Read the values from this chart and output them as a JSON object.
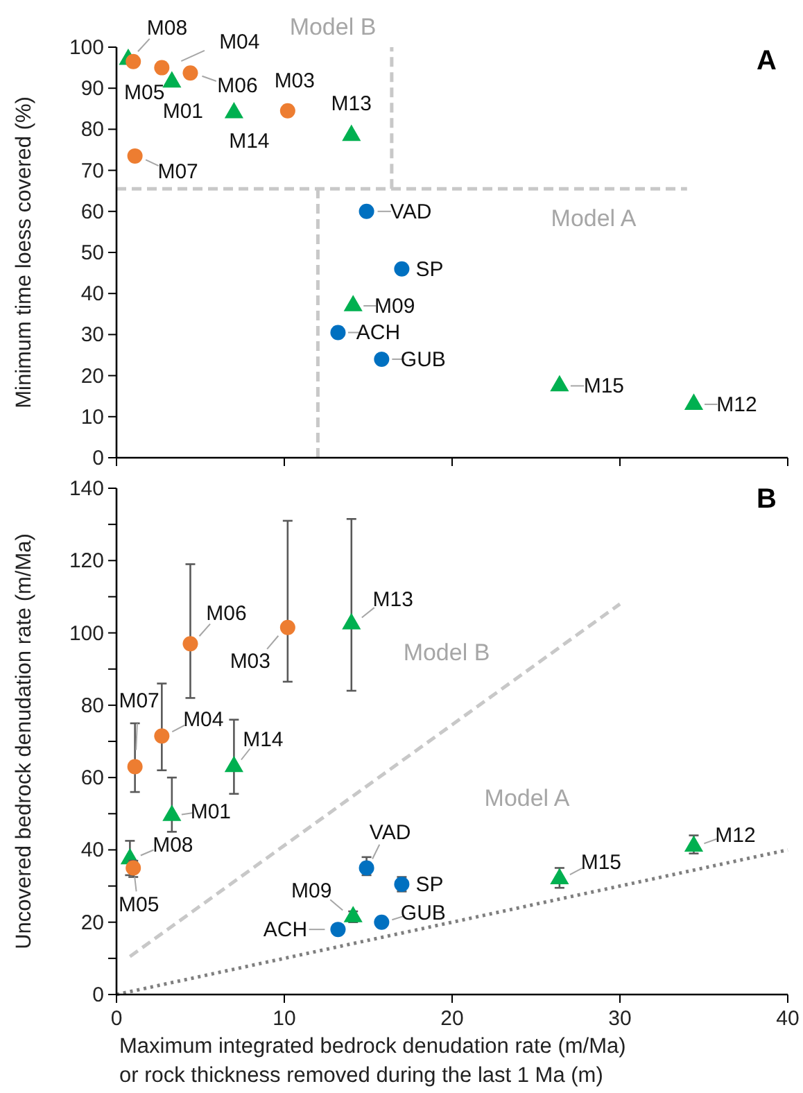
{
  "chart_data": [
    {
      "type": "scatter",
      "ylabel": "Minimum time loess covered (%)",
      "xlim": [
        0,
        40
      ],
      "xticks": [
        0,
        10,
        20,
        30,
        40
      ],
      "ylim": [
        0,
        100
      ],
      "yticks": [
        0,
        10,
        20,
        30,
        40,
        50,
        60,
        70,
        80,
        90,
        100
      ],
      "tick_labels": "y",
      "grid": false,
      "series": [
        {
          "type": "line",
          "color": "#c8c8c8",
          "line_style": "dashed",
          "x": [
            12,
            12
          ],
          "values": [
            0,
            65.5
          ]
        },
        {
          "type": "line",
          "color": "#c8c8c8",
          "line_style": "dashed",
          "x": [
            0,
            34
          ],
          "values": [
            65.5,
            65.5
          ]
        },
        {
          "type": "line",
          "color": "#c8c8c8",
          "line_style": "dashed",
          "x": [
            16.4,
            16.4
          ],
          "values": [
            65.5,
            100
          ]
        },
        {
          "color": "#00b050",
          "marker": "triangle",
          "x": [
            0.7,
            3.3,
            7.0,
            14.0,
            14.1,
            26.4,
            34.4
          ],
          "values": [
            97,
            91.5,
            84,
            78.5,
            37,
            17.5,
            13
          ]
        },
        {
          "color": "#ed7d31",
          "marker": "circle",
          "x": [
            1.0,
            2.7,
            4.4,
            1.1,
            10.2
          ],
          "values": [
            96.5,
            95,
            93.7,
            73.5,
            84.5
          ]
        },
        {
          "color": "#0070c0",
          "marker": "circle",
          "x": [
            14.9,
            17.0,
            13.2,
            15.8
          ],
          "values": [
            60,
            46,
            30.5,
            24
          ]
        }
      ],
      "annotations": [
        {
          "text": "M08",
          "x": 0.7,
          "y": 97
        },
        {
          "text": "M04",
          "x": 2.7,
          "y": 95
        },
        {
          "text": "M05",
          "x": 1.0,
          "y": 96.5
        },
        {
          "text": "M01",
          "x": 3.3,
          "y": 91.5
        },
        {
          "text": "M06",
          "x": 4.4,
          "y": 93.7
        },
        {
          "text": "M07",
          "x": 1.1,
          "y": 73.5
        },
        {
          "text": "M14",
          "x": 7.0,
          "y": 84
        },
        {
          "text": "M03",
          "x": 10.2,
          "y": 84.5
        },
        {
          "text": "M13",
          "x": 14.0,
          "y": 78.5
        },
        {
          "text": "VAD",
          "x": 14.9,
          "y": 60
        },
        {
          "text": "SP",
          "x": 17.0,
          "y": 46
        },
        {
          "text": "M09",
          "x": 14.1,
          "y": 37
        },
        {
          "text": "ACH",
          "x": 13.2,
          "y": 30.5
        },
        {
          "text": "GUB",
          "x": 15.8,
          "y": 24
        },
        {
          "text": "M15",
          "x": 26.4,
          "y": 17.5
        },
        {
          "text": "M12",
          "x": 34.4,
          "y": 13
        },
        "Model B",
        "Model A",
        "A"
      ]
    },
    {
      "type": "scatter",
      "ylabel": "Uncovered bedrock denudation rate (m/Ma)",
      "xlabel": "Maximum integrated bedrock denudation rate (m/Ma)\nor rock thickness removed during the last 1 Ma (m)",
      "xlim": [
        0,
        40
      ],
      "xticks": [
        0,
        10,
        20,
        30,
        40
      ],
      "ylim": [
        0,
        140
      ],
      "yticks": [
        0,
        {
          "value": 10,
          "label": null
        },
        20,
        {
          "value": 30,
          "label": null
        },
        40,
        {
          "value": 50,
          "label": null
        },
        60,
        {
          "value": 70,
          "label": null
        },
        80,
        {
          "value": 90,
          "label": null
        },
        100,
        {
          "value": 110,
          "label": null
        },
        120,
        {
          "value": 130,
          "label": null
        },
        140
      ],
      "grid": false,
      "series": [
        {
          "type": "line",
          "color": "#c8c8c8",
          "line_style": "dashed",
          "x": [
            0.8,
            30
          ],
          "values": [
            10.5,
            108
          ]
        },
        {
          "type": "line",
          "color": "#7f7f7f",
          "line_style": "dotted",
          "x": [
            0,
            40
          ],
          "values": [
            0,
            40
          ]
        },
        {
          "color": "#00b050",
          "marker": "triangle",
          "x": [
            0.8,
            3.3,
            7.0,
            14.0,
            14.1,
            26.4,
            34.4
          ],
          "values": [
            37.5,
            49.5,
            63,
            102.5,
            21.5,
            32,
            41
          ],
          "errors": [
            [
              33,
              42.5
            ],
            [
              45,
              60
            ],
            [
              55.5,
              76
            ],
            [
              84,
              131.5
            ],
            [
              20,
              23
            ],
            [
              29.5,
              35
            ],
            [
              39,
              44
            ]
          ]
        },
        {
          "color": "#ed7d31",
          "marker": "circle",
          "x": [
            1.0,
            2.7,
            4.4,
            1.1,
            10.2
          ],
          "values": [
            35,
            71.5,
            97,
            63,
            101.5
          ],
          "errors": [
            [
              32.5,
              37
            ],
            [
              62,
              86
            ],
            [
              82,
              119
            ],
            [
              56,
              75
            ],
            [
              86.5,
              131
            ]
          ]
        },
        {
          "color": "#0070c0",
          "marker": "circle",
          "x": [
            14.9,
            17.0,
            13.2,
            15.8
          ],
          "values": [
            35,
            30.5,
            18,
            20
          ],
          "errors": [
            [
              33,
              38
            ],
            [
              28.5,
              32.5
            ],
            null,
            null
          ]
        }
      ],
      "annotations": [
        {
          "text": "M13",
          "x": 14.0,
          "y": 102.5
        },
        {
          "text": "M03",
          "x": 10.2,
          "y": 101.5
        },
        {
          "text": "M06",
          "x": 4.4,
          "y": 97
        },
        {
          "text": "M07",
          "x": 1.1,
          "y": 63
        },
        {
          "text": "M04",
          "x": 2.7,
          "y": 71.5
        },
        {
          "text": "M14",
          "x": 7.0,
          "y": 63
        },
        {
          "text": "M01",
          "x": 3.3,
          "y": 49.5
        },
        {
          "text": "M08",
          "x": 0.8,
          "y": 37.5
        },
        {
          "text": "M05",
          "x": 1.0,
          "y": 35
        },
        {
          "text": "VAD",
          "x": 14.9,
          "y": 35
        },
        {
          "text": "SP",
          "x": 17.0,
          "y": 30.5
        },
        {
          "text": "M09",
          "x": 14.1,
          "y": 21.5
        },
        {
          "text": "GUB",
          "x": 15.8,
          "y": 20
        },
        {
          "text": "ACH",
          "x": 13.2,
          "y": 18
        },
        {
          "text": "M15",
          "x": 26.4,
          "y": 32
        },
        {
          "text": "M12",
          "x": 34.4,
          "y": 41
        },
        "Model B",
        "Model A",
        "B"
      ]
    }
  ]
}
